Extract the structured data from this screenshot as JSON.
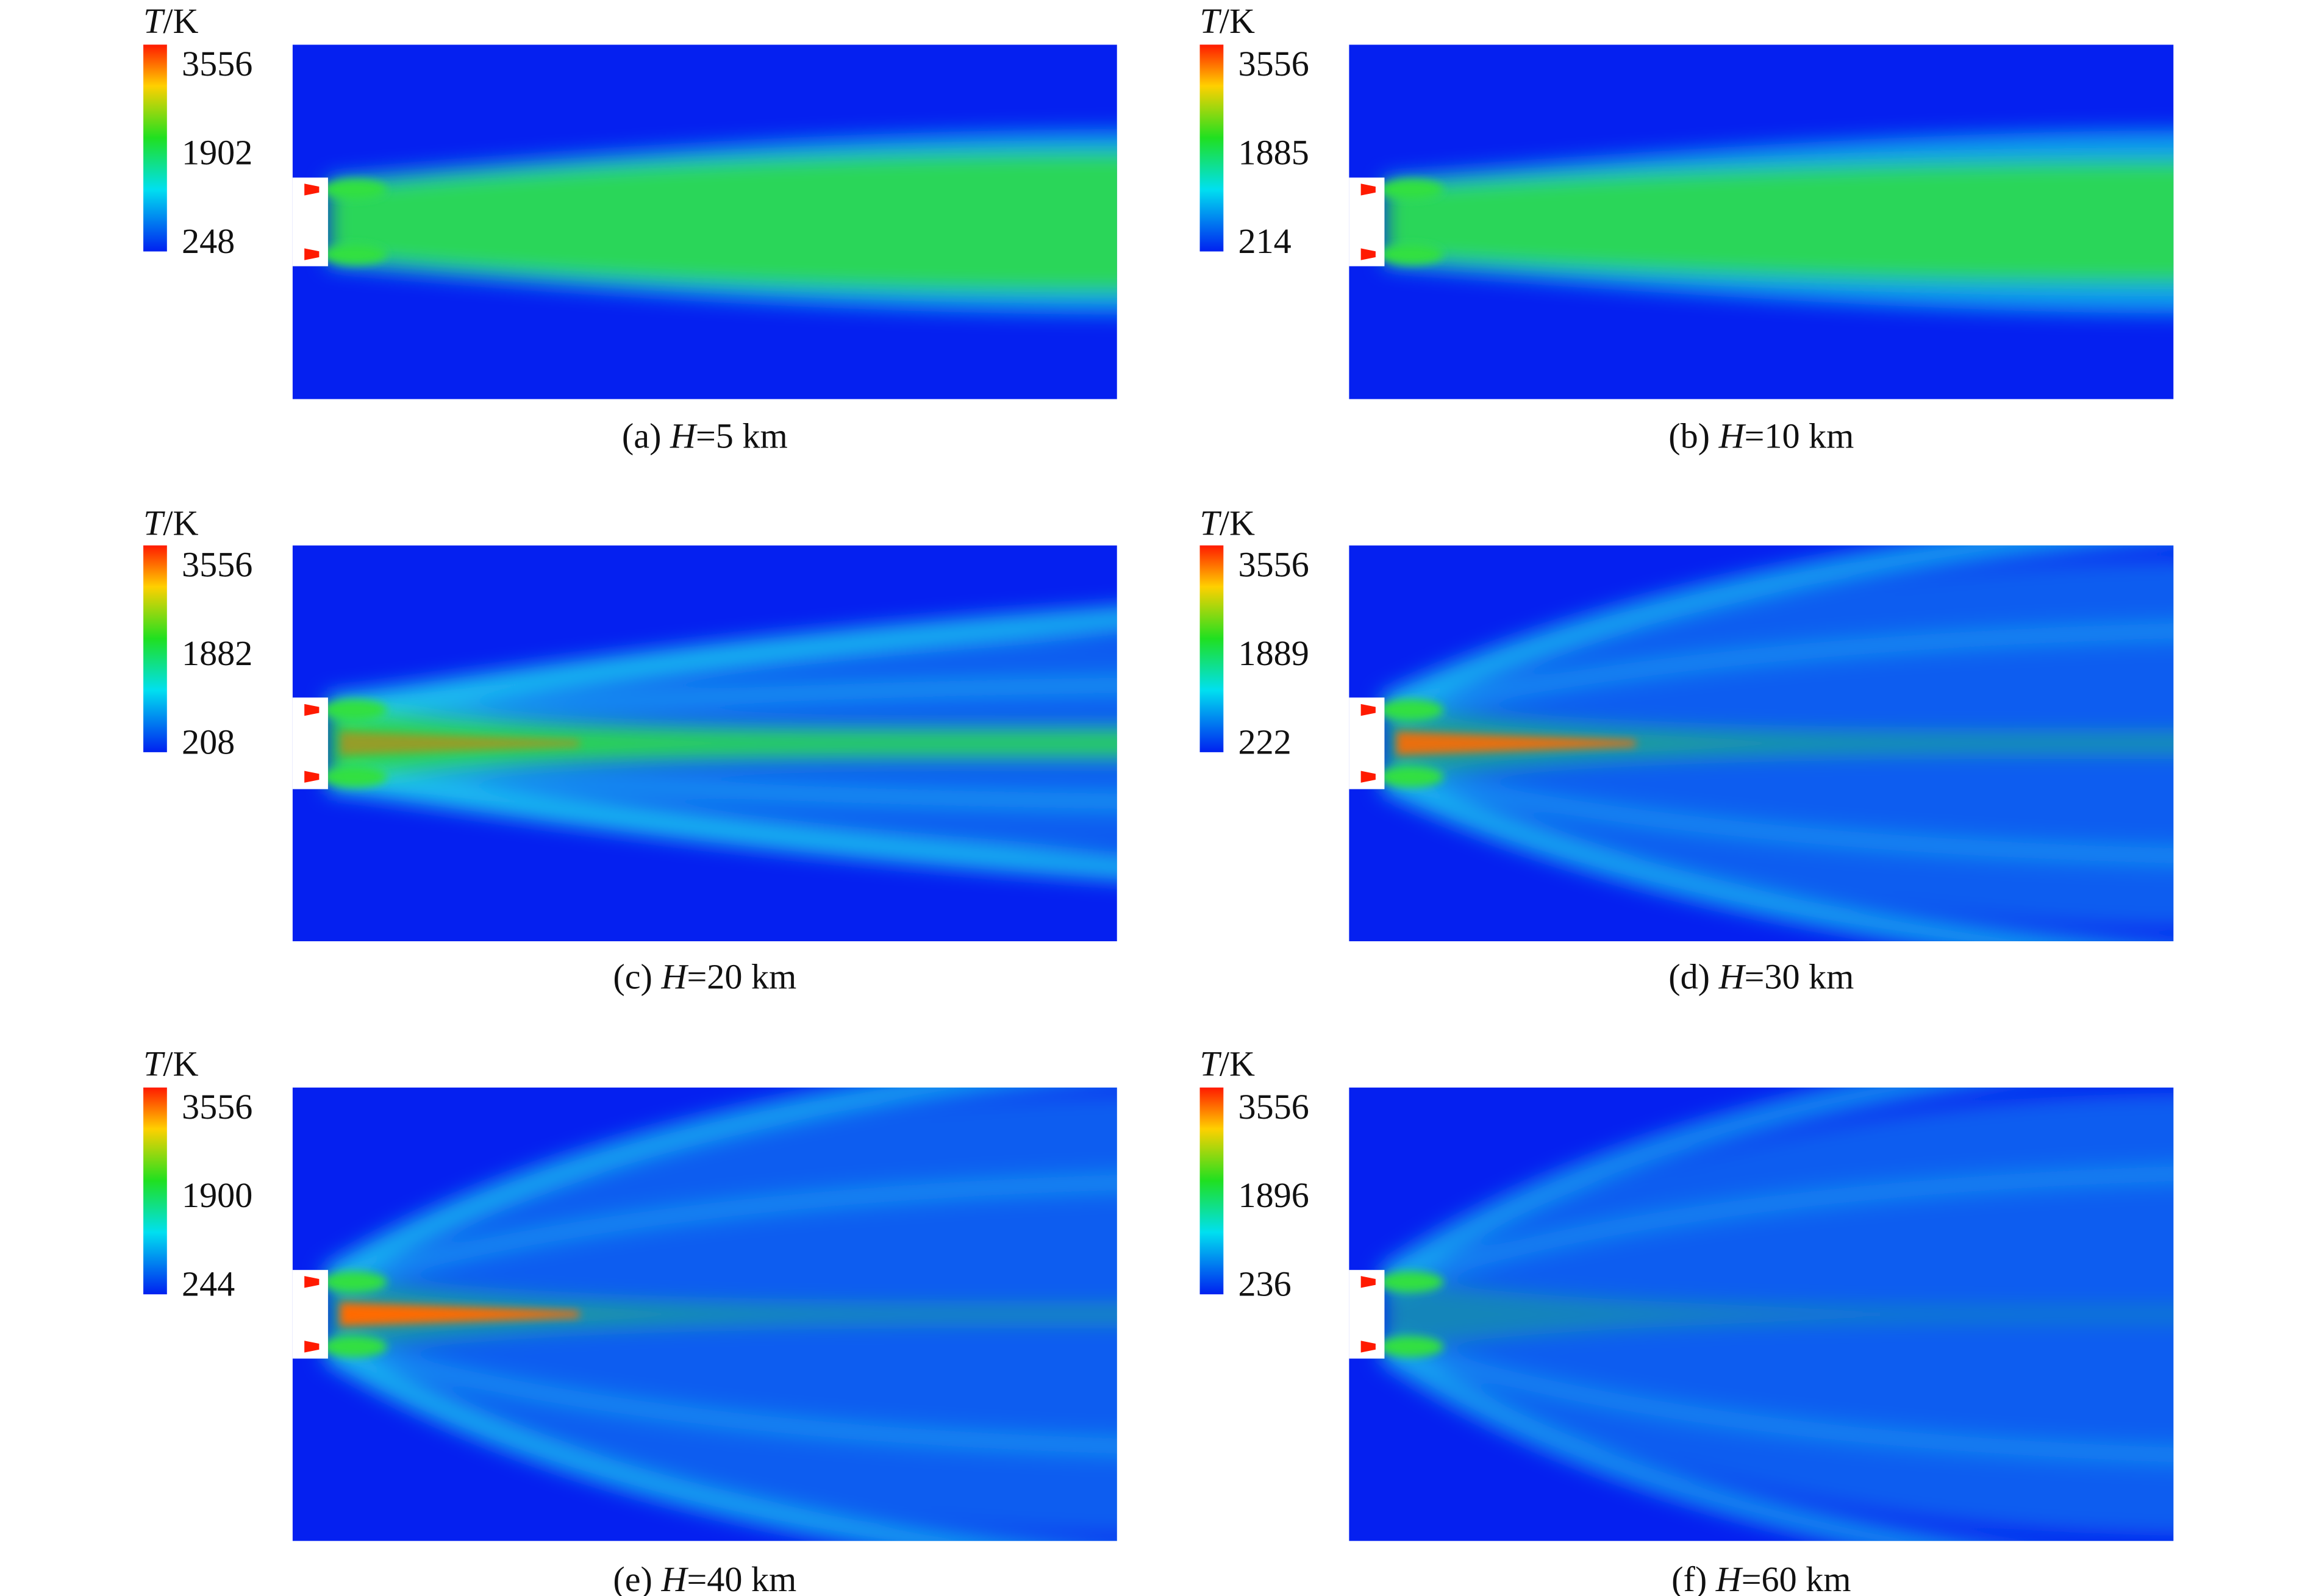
{
  "figure": {
    "panels": [
      {
        "colorbar": {
          "title": {
            "symbol": "T",
            "unit": "/K"
          },
          "max": 3556,
          "mid": 1902,
          "min": 248
        },
        "caption": {
          "prefix": "(a)",
          "symbol": "H",
          "suffix": "=5 km"
        }
      },
      {
        "colorbar": {
          "title": {
            "symbol": "T",
            "unit": "/K"
          },
          "max": 3556,
          "mid": 1885,
          "min": 214
        },
        "caption": {
          "prefix": "(b)",
          "symbol": "H",
          "suffix": "=10 km"
        }
      },
      {
        "colorbar": {
          "title": {
            "symbol": "T",
            "unit": "/K"
          },
          "max": 3556,
          "mid": 1882,
          "min": 208
        },
        "caption": {
          "prefix": "(c)",
          "symbol": "H",
          "suffix": "=20 km"
        }
      },
      {
        "colorbar": {
          "title": {
            "symbol": "T",
            "unit": "/K"
          },
          "max": 3556,
          "mid": 1889,
          "min": 222
        },
        "caption": {
          "prefix": "(d)",
          "symbol": "H",
          "suffix": "=30 km"
        }
      },
      {
        "colorbar": {
          "title": {
            "symbol": "T",
            "unit": "/K"
          },
          "max": 3556,
          "mid": 1900,
          "min": 244
        },
        "caption": {
          "prefix": "(e)",
          "symbol": "H",
          "suffix": "=40 km"
        }
      },
      {
        "colorbar": {
          "title": {
            "symbol": "T",
            "unit": "/K"
          },
          "max": 3556,
          "mid": 1896,
          "min": 236
        },
        "caption": {
          "prefix": "(f)",
          "symbol": "H",
          "suffix": "=60 km"
        }
      }
    ]
  }
}
